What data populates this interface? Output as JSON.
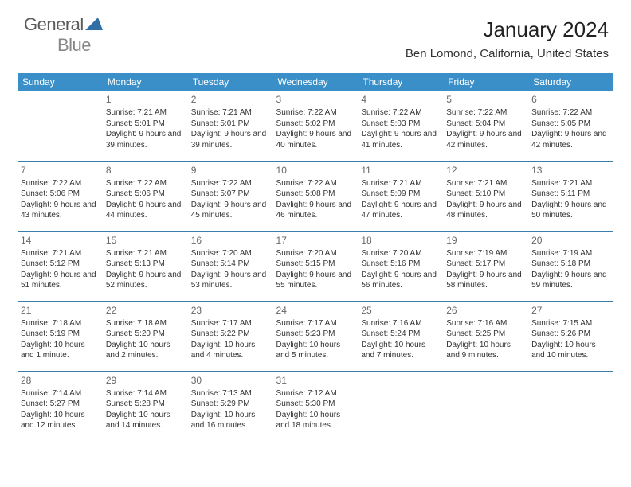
{
  "logo": {
    "textA": "General",
    "textB": "Blue"
  },
  "title": "January 2024",
  "location": "Ben Lomond, California, United States",
  "colors": {
    "headerBg": "#3a8fc8",
    "headerFg": "#ffffff",
    "rule": "#3a7fa8",
    "text": "#333333",
    "dayNum": "#666666",
    "logoGrey": "#5a5a5a",
    "logoBlue": "#2f6fa6"
  },
  "font": {
    "title_pt": 26,
    "location_pt": 15,
    "dayhead_pt": 12,
    "cell_pt": 10,
    "daynum_pt": 12
  },
  "dayHeaders": [
    "Sunday",
    "Monday",
    "Tuesday",
    "Wednesday",
    "Thursday",
    "Friday",
    "Saturday"
  ],
  "calendar": {
    "firstWeekdayIndex": 1,
    "days": [
      {
        "n": 1,
        "sr": "7:21 AM",
        "ss": "5:01 PM",
        "dl": "9 hours and 39 minutes."
      },
      {
        "n": 2,
        "sr": "7:21 AM",
        "ss": "5:01 PM",
        "dl": "9 hours and 39 minutes."
      },
      {
        "n": 3,
        "sr": "7:22 AM",
        "ss": "5:02 PM",
        "dl": "9 hours and 40 minutes."
      },
      {
        "n": 4,
        "sr": "7:22 AM",
        "ss": "5:03 PM",
        "dl": "9 hours and 41 minutes."
      },
      {
        "n": 5,
        "sr": "7:22 AM",
        "ss": "5:04 PM",
        "dl": "9 hours and 42 minutes."
      },
      {
        "n": 6,
        "sr": "7:22 AM",
        "ss": "5:05 PM",
        "dl": "9 hours and 42 minutes."
      },
      {
        "n": 7,
        "sr": "7:22 AM",
        "ss": "5:06 PM",
        "dl": "9 hours and 43 minutes."
      },
      {
        "n": 8,
        "sr": "7:22 AM",
        "ss": "5:06 PM",
        "dl": "9 hours and 44 minutes."
      },
      {
        "n": 9,
        "sr": "7:22 AM",
        "ss": "5:07 PM",
        "dl": "9 hours and 45 minutes."
      },
      {
        "n": 10,
        "sr": "7:22 AM",
        "ss": "5:08 PM",
        "dl": "9 hours and 46 minutes."
      },
      {
        "n": 11,
        "sr": "7:21 AM",
        "ss": "5:09 PM",
        "dl": "9 hours and 47 minutes."
      },
      {
        "n": 12,
        "sr": "7:21 AM",
        "ss": "5:10 PM",
        "dl": "9 hours and 48 minutes."
      },
      {
        "n": 13,
        "sr": "7:21 AM",
        "ss": "5:11 PM",
        "dl": "9 hours and 50 minutes."
      },
      {
        "n": 14,
        "sr": "7:21 AM",
        "ss": "5:12 PM",
        "dl": "9 hours and 51 minutes."
      },
      {
        "n": 15,
        "sr": "7:21 AM",
        "ss": "5:13 PM",
        "dl": "9 hours and 52 minutes."
      },
      {
        "n": 16,
        "sr": "7:20 AM",
        "ss": "5:14 PM",
        "dl": "9 hours and 53 minutes."
      },
      {
        "n": 17,
        "sr": "7:20 AM",
        "ss": "5:15 PM",
        "dl": "9 hours and 55 minutes."
      },
      {
        "n": 18,
        "sr": "7:20 AM",
        "ss": "5:16 PM",
        "dl": "9 hours and 56 minutes."
      },
      {
        "n": 19,
        "sr": "7:19 AM",
        "ss": "5:17 PM",
        "dl": "9 hours and 58 minutes."
      },
      {
        "n": 20,
        "sr": "7:19 AM",
        "ss": "5:18 PM",
        "dl": "9 hours and 59 minutes."
      },
      {
        "n": 21,
        "sr": "7:18 AM",
        "ss": "5:19 PM",
        "dl": "10 hours and 1 minute."
      },
      {
        "n": 22,
        "sr": "7:18 AM",
        "ss": "5:20 PM",
        "dl": "10 hours and 2 minutes."
      },
      {
        "n": 23,
        "sr": "7:17 AM",
        "ss": "5:22 PM",
        "dl": "10 hours and 4 minutes."
      },
      {
        "n": 24,
        "sr": "7:17 AM",
        "ss": "5:23 PM",
        "dl": "10 hours and 5 minutes."
      },
      {
        "n": 25,
        "sr": "7:16 AM",
        "ss": "5:24 PM",
        "dl": "10 hours and 7 minutes."
      },
      {
        "n": 26,
        "sr": "7:16 AM",
        "ss": "5:25 PM",
        "dl": "10 hours and 9 minutes."
      },
      {
        "n": 27,
        "sr": "7:15 AM",
        "ss": "5:26 PM",
        "dl": "10 hours and 10 minutes."
      },
      {
        "n": 28,
        "sr": "7:14 AM",
        "ss": "5:27 PM",
        "dl": "10 hours and 12 minutes."
      },
      {
        "n": 29,
        "sr": "7:14 AM",
        "ss": "5:28 PM",
        "dl": "10 hours and 14 minutes."
      },
      {
        "n": 30,
        "sr": "7:13 AM",
        "ss": "5:29 PM",
        "dl": "10 hours and 16 minutes."
      },
      {
        "n": 31,
        "sr": "7:12 AM",
        "ss": "5:30 PM",
        "dl": "10 hours and 18 minutes."
      }
    ],
    "labels": {
      "sunrise": "Sunrise:",
      "sunset": "Sunset:",
      "daylight": "Daylight:"
    }
  }
}
